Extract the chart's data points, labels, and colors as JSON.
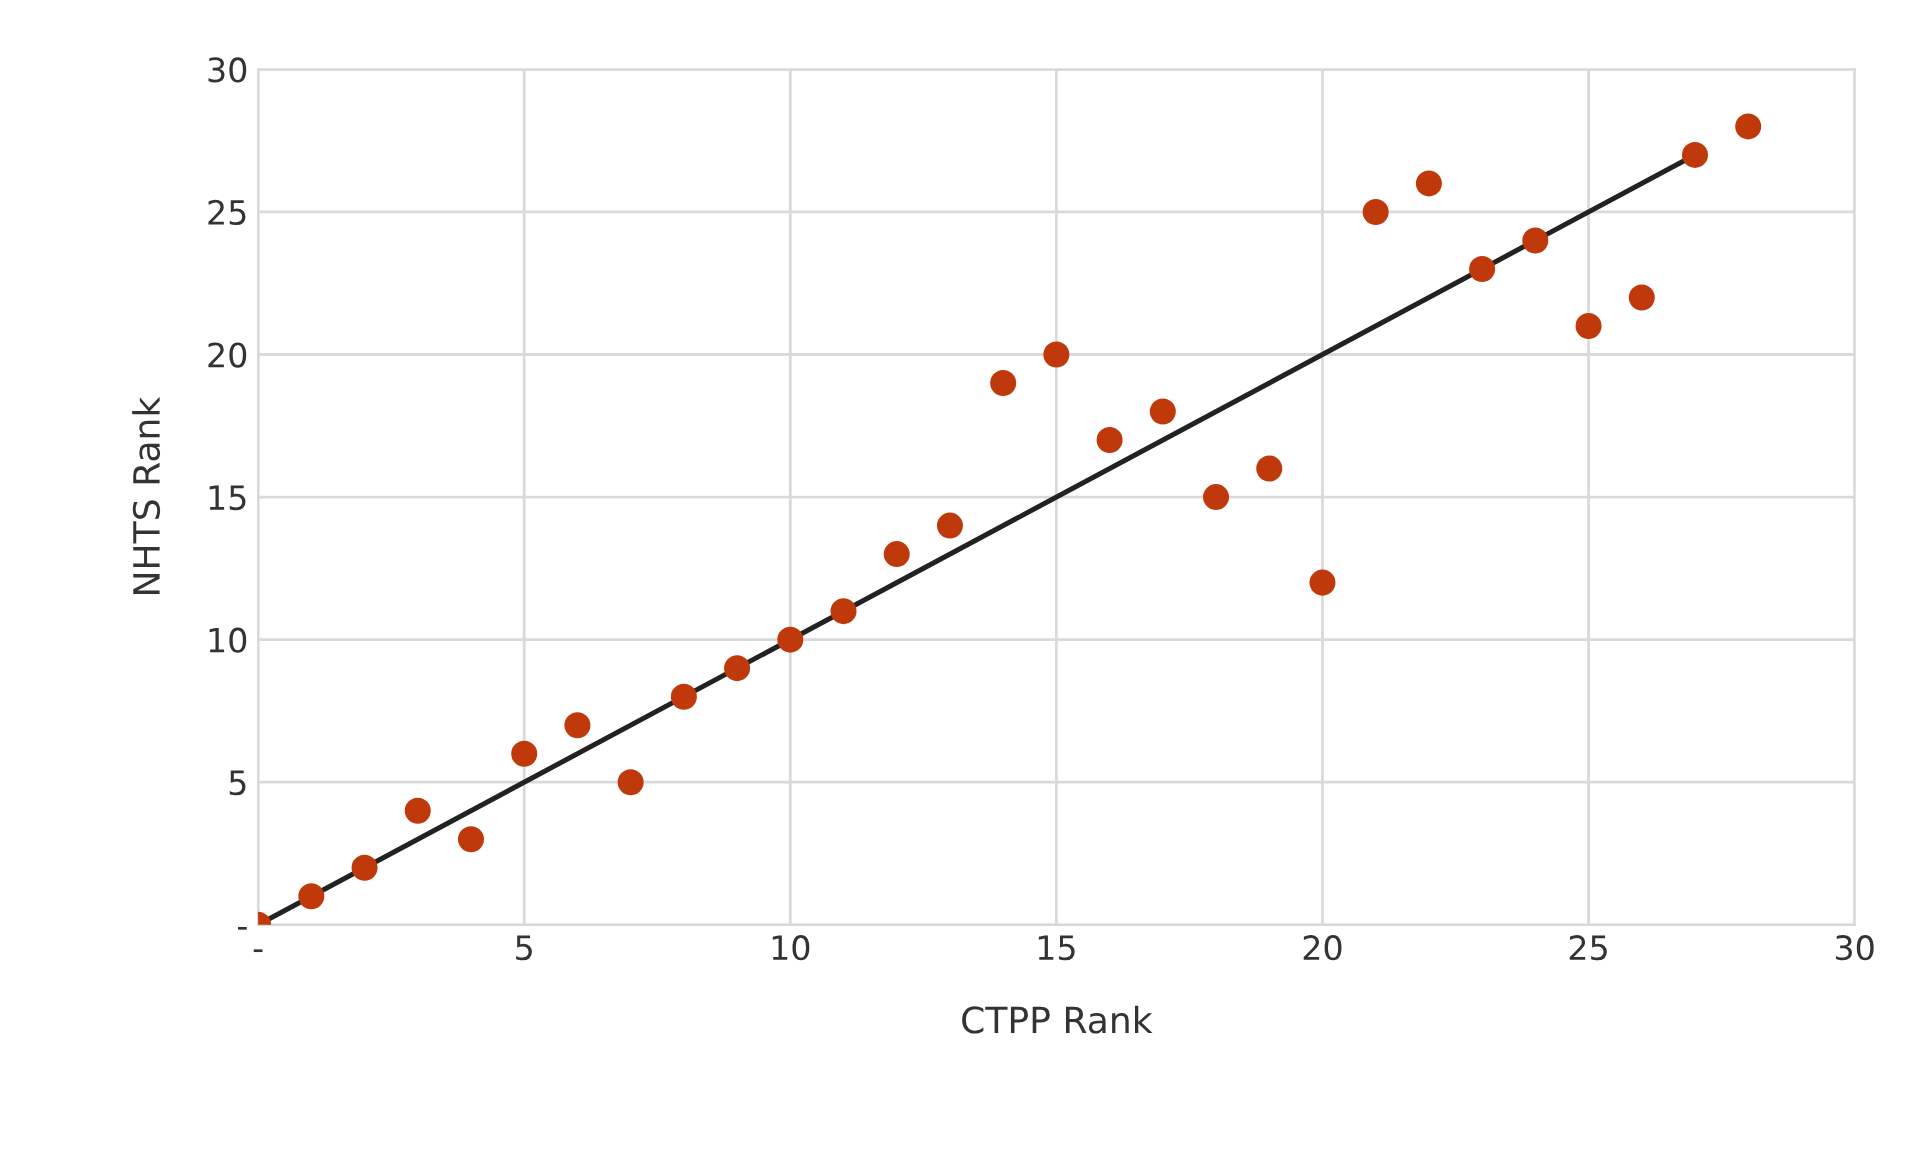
{
  "chart_data": {
    "type": "scatter",
    "xlabel": "CTPP Rank",
    "ylabel": "NHTS Rank",
    "x": [
      0,
      1,
      2,
      3,
      4,
      5,
      6,
      7,
      8,
      9,
      10,
      11,
      12,
      13,
      14,
      15,
      16,
      17,
      18,
      19,
      20,
      21,
      22,
      23,
      24,
      25,
      26,
      27,
      28
    ],
    "series": [
      {
        "marker": "circle",
        "color": "#c0390b",
        "values": [
          0,
          1,
          2,
          4,
          3,
          6,
          7,
          5,
          8,
          9,
          10,
          11,
          13,
          14,
          19,
          20,
          17,
          18,
          15,
          16,
          12,
          25,
          26,
          23,
          24,
          21,
          22,
          27,
          28
        ]
      },
      {
        "type": "line",
        "color": "#222222",
        "x": [
          0,
          27
        ],
        "values": [
          0,
          27
        ]
      }
    ],
    "xlim": [
      0,
      30
    ],
    "ylim": [
      0,
      30
    ],
    "xticks": [
      {
        "value": 0,
        "label": "-"
      },
      5,
      10,
      15,
      20,
      25,
      30
    ],
    "yticks": [
      {
        "value": 0,
        "label": "-"
      },
      5,
      10,
      15,
      20,
      25,
      30
    ],
    "grid": true
  }
}
